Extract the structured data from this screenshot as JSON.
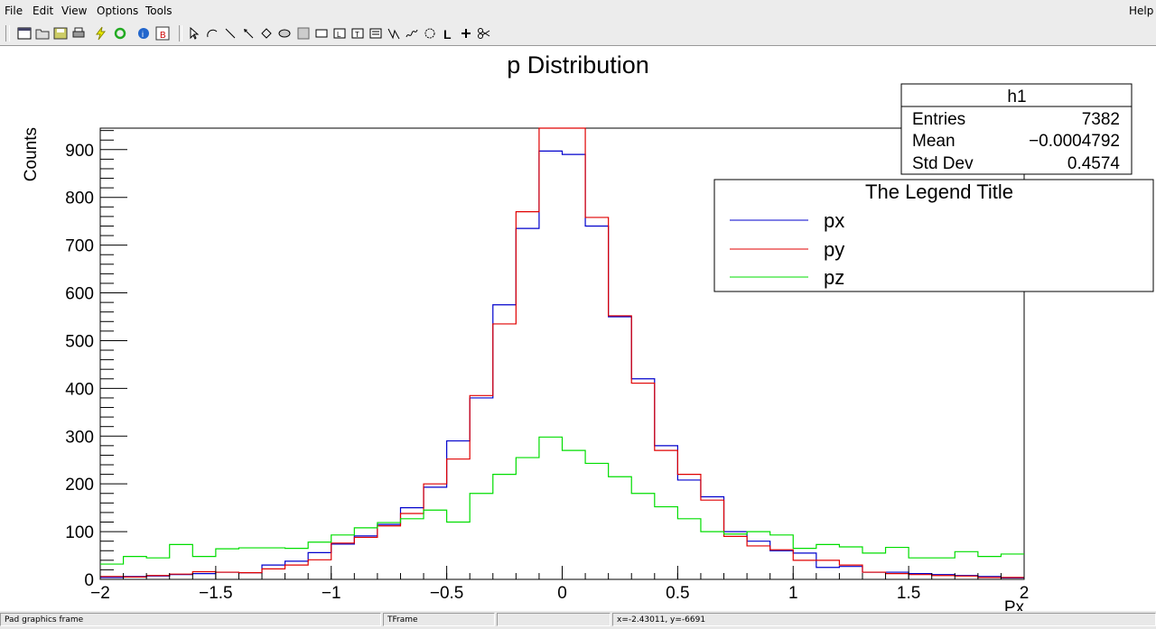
{
  "menu": {
    "file": "File",
    "edit": "Edit",
    "view": "View",
    "options": "Options",
    "tools": "Tools",
    "help": "Help"
  },
  "toolbar": {
    "icons": [
      "new-canvas-icon",
      "open-icon",
      "save-icon",
      "print-icon",
      "interrupt-icon",
      "refresh-icon",
      "inspect-icon",
      "browser-icon",
      "pointer-icon",
      "arc-icon",
      "line-icon",
      "arrow-icon",
      "diamond-icon",
      "ellipse-icon",
      "pad-icon",
      "pave-icon",
      "pavelabel-icon",
      "pavetext-icon",
      "pavestext-icon",
      "graph-icon",
      "curlyline-icon",
      "curlyarc-icon",
      "latex-icon",
      "marker-icon",
      "cut-icon"
    ]
  },
  "status": {
    "object": "Pad graphics frame",
    "class": "TFrame",
    "info": "",
    "coords": "x=-2.43011, y=-6691"
  },
  "stats": {
    "title": "h1",
    "entries_label": "Entries",
    "entries_value": "7382",
    "mean_label": "Mean",
    "mean_value": "−0.0004792",
    "stddev_label": "Std Dev",
    "stddev_value": "0.4574"
  },
  "chart_data": {
    "type": "step",
    "title": "p Distribution",
    "xlabel": "Px",
    "ylabel": "Counts",
    "xlim": [
      -2,
      2
    ],
    "ylim": [
      0,
      945
    ],
    "bin_edges_start": -2,
    "bin_width": 0.1,
    "xticks": [
      -2,
      -1.5,
      -1,
      -0.5,
      0,
      0.5,
      1,
      1.5,
      2
    ],
    "xtick_labels": [
      "−2",
      "−1.5",
      "−1",
      "−0.5",
      "0",
      "0.5",
      "1",
      "1.5",
      "2"
    ],
    "yticks": [
      0,
      100,
      200,
      300,
      400,
      500,
      600,
      700,
      800,
      900
    ],
    "ytick_labels": [
      "0",
      "100",
      "200",
      "300",
      "400",
      "500",
      "600",
      "700",
      "800",
      "900"
    ],
    "legend": {
      "title": "The Legend Title",
      "placement": "top-right",
      "entries": [
        "px",
        "py",
        "pz"
      ]
    },
    "series": [
      {
        "name": "px",
        "color": "#0000cc",
        "values": [
          4,
          6,
          7,
          10,
          12,
          15,
          14,
          30,
          38,
          56,
          74,
          91,
          115,
          150,
          193,
          290,
          380,
          575,
          735,
          897,
          890,
          740,
          550,
          420,
          280,
          208,
          173,
          100,
          80,
          60,
          55,
          25,
          27,
          15,
          15,
          12,
          10,
          8,
          6,
          3
        ]
      },
      {
        "name": "py",
        "color": "#e00000",
        "values": [
          6,
          5,
          8,
          11,
          16,
          15,
          14,
          22,
          30,
          41,
          76,
          88,
          112,
          138,
          200,
          252,
          385,
          535,
          770,
          945,
          945,
          758,
          552,
          411,
          270,
          220,
          166,
          90,
          70,
          62,
          40,
          40,
          30,
          15,
          12,
          10,
          8,
          7,
          4,
          4
        ]
      },
      {
        "name": "pz",
        "color": "#00dd00",
        "values": [
          32,
          48,
          45,
          73,
          48,
          64,
          66,
          66,
          65,
          78,
          93,
          108,
          119,
          127,
          145,
          120,
          180,
          220,
          255,
          298,
          270,
          243,
          215,
          180,
          152,
          127,
          100,
          95,
          100,
          93,
          65,
          73,
          68,
          55,
          67,
          45,
          45,
          58,
          48,
          53
        ]
      }
    ]
  }
}
